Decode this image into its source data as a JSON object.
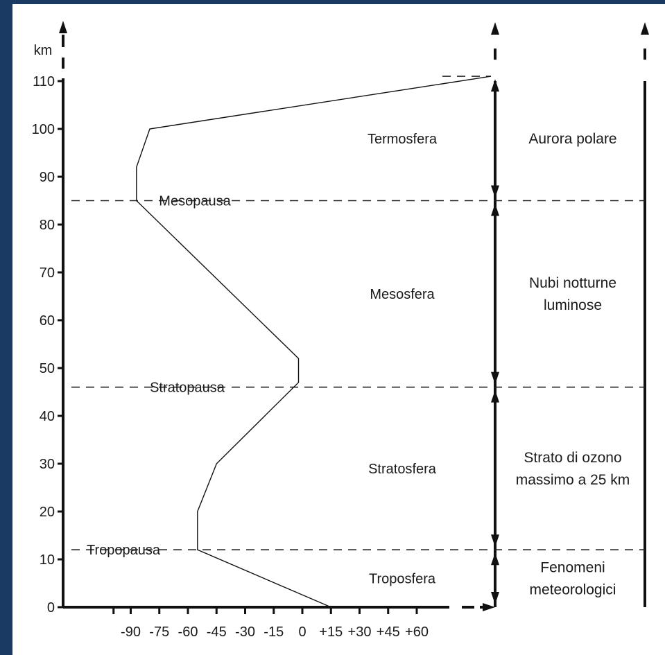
{
  "chart_data": {
    "type": "line",
    "y_unit": "km",
    "ylim": [
      0,
      110
    ],
    "y_ticks": [
      "0",
      "10",
      "20",
      "30",
      "40",
      "50",
      "60",
      "70",
      "80",
      "90",
      "100",
      "110"
    ],
    "xlim": [
      -100,
      65
    ],
    "x_ticks": [
      "-90",
      "-75",
      "-60",
      "-45",
      "-30",
      "-15",
      "0",
      "+15",
      "+30",
      "+45",
      "+60"
    ],
    "series": [
      {
        "x": [
          15,
          -55,
          -55,
          -45,
          -2,
          -2,
          -87,
          -87,
          -80,
          112
        ],
        "y": [
          0,
          12,
          20,
          30,
          47,
          52,
          85,
          92,
          100,
          111
        ]
      }
    ],
    "boundaries": [
      {
        "label": "Tropopausa",
        "y": 12
      },
      {
        "label": "Stratopausa",
        "y": 46
      },
      {
        "label": "Mesopausa",
        "y": 85
      }
    ],
    "layers": [
      {
        "name": "Troposfera",
        "y_from": 0,
        "y_to": 12,
        "phenomenon": [
          "Fenomeni",
          "meteorologici"
        ]
      },
      {
        "name": "Stratosfera",
        "y_from": 12,
        "y_to": 46,
        "phenomenon": [
          "Strato di ozono",
          "massimo a 25 km"
        ]
      },
      {
        "name": "Mesosfera",
        "y_from": 46,
        "y_to": 85,
        "phenomenon": [
          "Nubi notturne",
          "luminose"
        ]
      },
      {
        "name": "Termosfera",
        "y_from": 85,
        "y_to": 111,
        "phenomenon": [
          "Aurora polare"
        ]
      }
    ]
  }
}
